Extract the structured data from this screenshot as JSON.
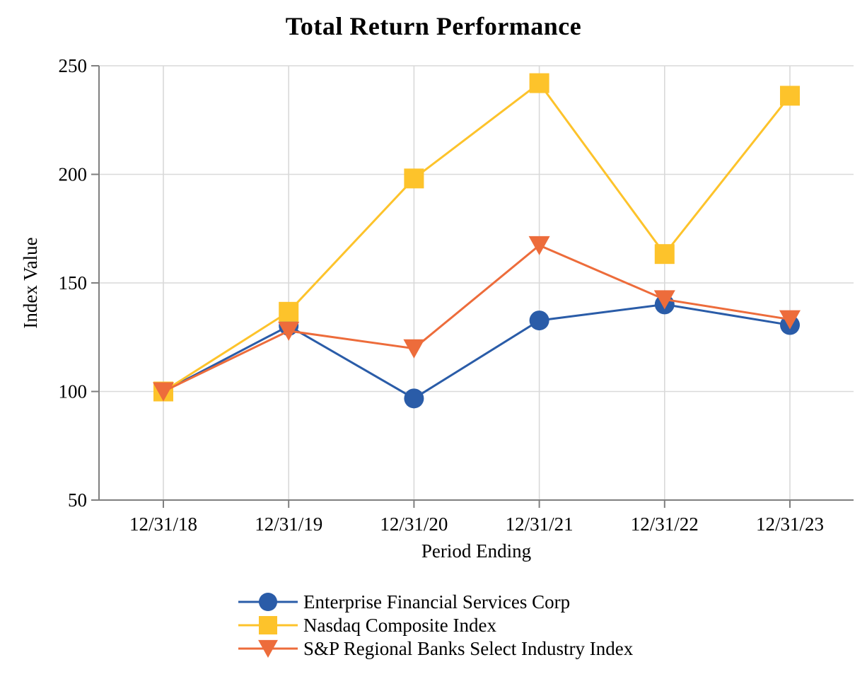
{
  "title": "Total Return Performance",
  "chart_data": {
    "type": "line",
    "title": "Total Return Performance",
    "xlabel": "Period Ending",
    "ylabel": "Index Value",
    "categories": [
      "12/31/18",
      "12/31/19",
      "12/31/20",
      "12/31/21",
      "12/31/22",
      "12/31/23"
    ],
    "series": [
      {
        "name": "Enterprise Financial Services Corp",
        "marker": "circle",
        "color": "#2A5CA8",
        "values": [
          100,
          130.2,
          96.8,
          132.7,
          140.1,
          130.6
        ]
      },
      {
        "name": "Nasdaq Composite Index",
        "marker": "square",
        "color": "#FDC32B",
        "values": [
          100,
          136.7,
          198.1,
          242.0,
          163.3,
          236.2
        ]
      },
      {
        "name": "S&P Regional Banks Select Industry Index",
        "marker": "triangle-down",
        "color": "#ED6C3B",
        "values": [
          100,
          127.9,
          119.8,
          167.3,
          142.4,
          133.2
        ]
      }
    ],
    "y_ticks": [
      50,
      100,
      150,
      200,
      250
    ],
    "ylim": [
      50,
      250
    ],
    "grid": true,
    "legend_position": "bottom",
    "colors": {
      "gridline": "#D9D9D9",
      "axis": "#7F7F7F",
      "text": "#000000",
      "background": "#FFFFFF"
    }
  }
}
